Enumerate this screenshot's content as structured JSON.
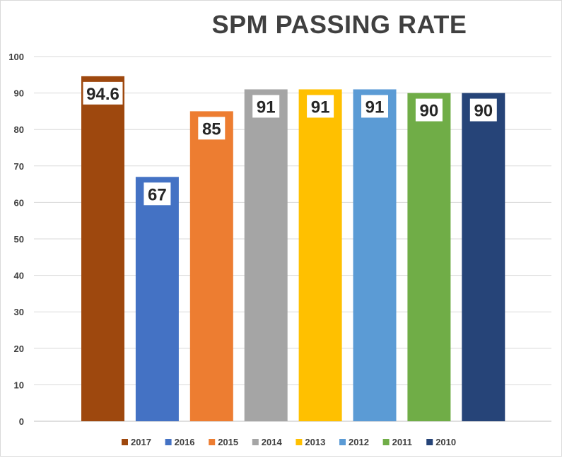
{
  "chart_data": {
    "type": "bar",
    "title": "SPM PASSING RATE",
    "xlabel": "",
    "ylabel": "",
    "ylim": [
      0,
      100
    ],
    "yticks": [
      0,
      10,
      20,
      30,
      40,
      50,
      60,
      70,
      80,
      90,
      100
    ],
    "grid": true,
    "legend_position": "bottom",
    "categories": [
      "2017",
      "2016",
      "2015",
      "2014",
      "2013",
      "2012",
      "2011",
      "2010"
    ],
    "values": [
      94.6,
      67,
      85,
      91,
      91,
      91,
      90,
      90
    ],
    "data_labels": [
      "94.6",
      "67",
      "85",
      "91",
      "91",
      "91",
      "90",
      "90"
    ],
    "colors": [
      "#9e480e",
      "#4472c4",
      "#ed7d31",
      "#a5a5a5",
      "#ffc000",
      "#5b9bd5",
      "#70ad47",
      "#264478"
    ]
  }
}
